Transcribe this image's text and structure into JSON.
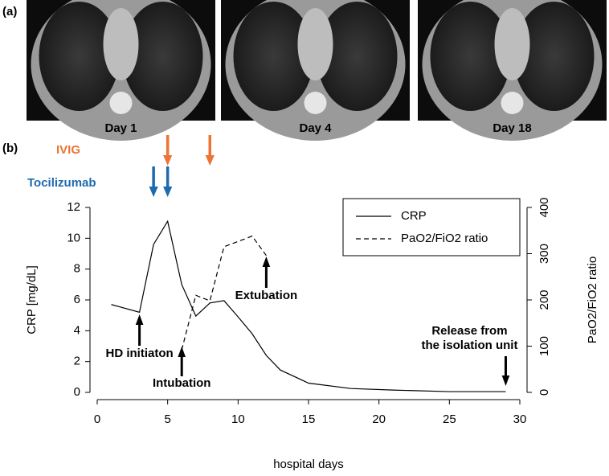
{
  "panel_a": {
    "label": "(a)",
    "images": [
      "Day 1",
      "Day 4",
      "Day 18"
    ]
  },
  "chart_data": {
    "type": "line",
    "panel_label": "(b)",
    "xlabel": "hospital days",
    "ylabel": "CRP [mg/dL]",
    "y2label": "PaO2/FiO2 ratio",
    "xlim": [
      0,
      30
    ],
    "xticks": [
      0,
      5,
      10,
      15,
      20,
      25,
      30
    ],
    "ylim": [
      0,
      12
    ],
    "yticks": [
      0,
      2,
      4,
      6,
      8,
      10,
      12
    ],
    "y2lim": [
      0,
      400
    ],
    "y2ticks": [
      0,
      100,
      200,
      300,
      400
    ],
    "legend": "top-right",
    "series": [
      {
        "name": "CRP",
        "color": "#000000",
        "dash": false,
        "x": [
          1,
          3,
          4,
          5,
          6,
          7,
          8,
          9,
          10,
          11,
          12,
          13,
          15,
          18,
          21,
          25,
          29
        ],
        "values": [
          5.7,
          5.2,
          9.6,
          11.1,
          7.0,
          4.95,
          5.8,
          5.95,
          4.9,
          3.8,
          2.4,
          1.45,
          0.6,
          0.25,
          0.15,
          0.05,
          0.05
        ]
      },
      {
        "name": "PaO2/FiO2 ratio",
        "color": "#000000",
        "dash": true,
        "axis": "y2",
        "x": [
          6,
          7,
          8,
          9,
          11,
          12
        ],
        "values": [
          92,
          210,
          198,
          315,
          338,
          296
        ]
      }
    ],
    "treatments": [
      {
        "name": "IVIG",
        "color": "#ec7434",
        "days": [
          5,
          8
        ]
      },
      {
        "name": "Tocilizumab",
        "color": "#1d6aae",
        "days": [
          4,
          5
        ]
      }
    ],
    "annotations": [
      {
        "text": [
          "HD initiaton"
        ],
        "x": 3
      },
      {
        "text": [
          "Intubation"
        ],
        "x": 6
      },
      {
        "text": [
          "Extubation"
        ],
        "x": 12
      },
      {
        "text": [
          "Release from",
          "the isolation unit"
        ],
        "x": 29
      }
    ]
  }
}
